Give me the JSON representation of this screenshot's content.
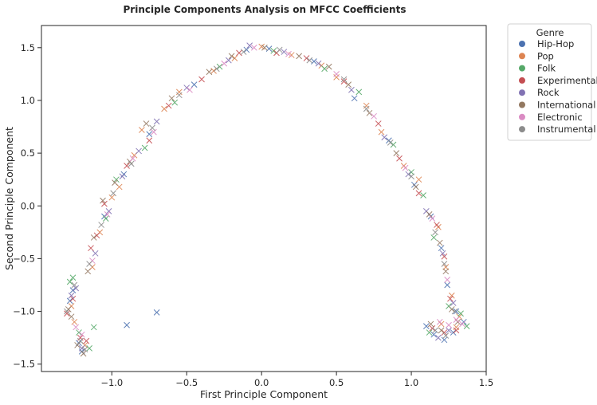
{
  "chart_data": {
    "type": "scatter",
    "title": "Principle Components Analysis on MFCC Coefficients",
    "xlabel": "First Principle Component",
    "ylabel": "Second Principle Component",
    "xlim": [
      -1.47,
      1.5
    ],
    "ylim": [
      -1.57,
      1.71
    ],
    "xticks": [
      -1.0,
      -0.5,
      0.0,
      0.5,
      1.0,
      1.5
    ],
    "xtick_labels": [
      "−1.0",
      "−0.5",
      "0.0",
      "0.5",
      "1.0",
      "1.5"
    ],
    "yticks": [
      -1.5,
      -1.0,
      -0.5,
      0.0,
      0.5,
      1.0,
      1.5
    ],
    "ytick_labels": [
      "−1.5",
      "−1.0",
      "−0.5",
      "0.0",
      "0.5",
      "1.0",
      "1.5"
    ],
    "grid": false,
    "marker": "x",
    "legend": {
      "title": "Genre",
      "placement": "outside-top-right"
    },
    "series": [
      {
        "name": "Hip-Hop",
        "color": "#4c72b0",
        "points": [
          [
            -1.26,
            -0.8
          ],
          [
            -1.28,
            -0.9
          ],
          [
            -1.22,
            -1.3
          ],
          [
            -1.2,
            -1.38
          ],
          [
            -0.9,
            -1.13
          ],
          [
            -0.7,
            -1.01
          ],
          [
            -1.05,
            -0.1
          ],
          [
            -0.92,
            0.3
          ],
          [
            -0.75,
            0.68
          ],
          [
            -0.45,
            1.15
          ],
          [
            -0.1,
            1.48
          ],
          [
            0.05,
            1.49
          ],
          [
            0.35,
            1.37
          ],
          [
            0.62,
            1.02
          ],
          [
            0.85,
            0.62
          ],
          [
            1.02,
            0.2
          ],
          [
            1.13,
            -0.1
          ],
          [
            1.2,
            -0.4
          ],
          [
            1.24,
            -0.75
          ],
          [
            1.3,
            -1.0
          ],
          [
            1.15,
            -1.22
          ],
          [
            1.22,
            -1.27
          ],
          [
            1.28,
            -1.2
          ],
          [
            1.1,
            -1.14
          ],
          [
            1.35,
            -1.1
          ]
        ]
      },
      {
        "name": "Pop",
        "color": "#dd8452",
        "points": [
          [
            -1.27,
            -0.95
          ],
          [
            -1.25,
            -1.1
          ],
          [
            -1.18,
            -1.32
          ],
          [
            -1.13,
            -0.58
          ],
          [
            -1.08,
            -0.25
          ],
          [
            -1.0,
            0.08
          ],
          [
            -0.95,
            0.18
          ],
          [
            -0.85,
            0.48
          ],
          [
            -0.8,
            0.72
          ],
          [
            -0.65,
            0.92
          ],
          [
            -0.55,
            1.08
          ],
          [
            -0.32,
            1.28
          ],
          [
            -0.18,
            1.4
          ],
          [
            0.0,
            1.51
          ],
          [
            0.2,
            1.43
          ],
          [
            0.4,
            1.33
          ],
          [
            0.5,
            1.22
          ],
          [
            0.7,
            0.95
          ],
          [
            0.8,
            0.7
          ],
          [
            0.95,
            0.38
          ],
          [
            1.05,
            0.25
          ],
          [
            1.18,
            -0.2
          ],
          [
            1.23,
            -0.58
          ],
          [
            1.27,
            -0.85
          ],
          [
            1.32,
            -1.05
          ],
          [
            1.3,
            -1.15
          ],
          [
            1.2,
            -1.12
          ]
        ]
      },
      {
        "name": "Folk",
        "color": "#55a868",
        "points": [
          [
            -1.28,
            -0.72
          ],
          [
            -1.26,
            -0.68
          ],
          [
            -1.22,
            -1.2
          ],
          [
            -1.12,
            -1.15
          ],
          [
            -1.15,
            -1.35
          ],
          [
            -1.04,
            -0.12
          ],
          [
            -0.97,
            0.25
          ],
          [
            -0.78,
            0.55
          ],
          [
            -0.58,
            0.98
          ],
          [
            -0.28,
            1.32
          ],
          [
            0.08,
            1.47
          ],
          [
            0.42,
            1.3
          ],
          [
            0.65,
            1.08
          ],
          [
            0.88,
            0.58
          ],
          [
            1.0,
            0.32
          ],
          [
            1.08,
            0.1
          ],
          [
            1.15,
            -0.3
          ],
          [
            1.25,
            -0.95
          ],
          [
            1.33,
            -1.02
          ],
          [
            1.37,
            -1.14
          ],
          [
            1.12,
            -1.2
          ]
        ]
      },
      {
        "name": "Experimental",
        "color": "#c44e52",
        "points": [
          [
            -1.3,
            -1.02
          ],
          [
            -1.26,
            -0.88
          ],
          [
            -1.21,
            -1.25
          ],
          [
            -1.17,
            -1.28
          ],
          [
            -1.14,
            -0.4
          ],
          [
            -1.1,
            -0.28
          ],
          [
            -1.05,
            0.02
          ],
          [
            -0.9,
            0.38
          ],
          [
            -0.75,
            0.62
          ],
          [
            -0.62,
            0.95
          ],
          [
            -0.4,
            1.2
          ],
          [
            -0.15,
            1.45
          ],
          [
            0.1,
            1.45
          ],
          [
            0.3,
            1.4
          ],
          [
            0.55,
            1.18
          ],
          [
            0.78,
            0.78
          ],
          [
            0.92,
            0.45
          ],
          [
            1.05,
            0.12
          ],
          [
            1.17,
            -0.18
          ],
          [
            1.22,
            -0.48
          ],
          [
            1.26,
            -0.88
          ],
          [
            1.3,
            -1.18
          ],
          [
            1.22,
            -1.2
          ],
          [
            1.14,
            -1.16
          ]
        ]
      },
      {
        "name": "Rock",
        "color": "#8172b3",
        "points": [
          [
            -1.27,
            -0.85
          ],
          [
            -1.24,
            -0.78
          ],
          [
            -1.2,
            -1.35
          ],
          [
            -1.11,
            -0.45
          ],
          [
            -1.02,
            -0.05
          ],
          [
            -0.93,
            0.28
          ],
          [
            -0.82,
            0.52
          ],
          [
            -0.7,
            0.8
          ],
          [
            -0.5,
            1.12
          ],
          [
            -0.22,
            1.38
          ],
          [
            -0.08,
            1.52
          ],
          [
            0.15,
            1.46
          ],
          [
            0.38,
            1.35
          ],
          [
            0.6,
            1.1
          ],
          [
            0.82,
            0.65
          ],
          [
            0.98,
            0.3
          ],
          [
            1.1,
            -0.05
          ],
          [
            1.21,
            -0.45
          ],
          [
            1.28,
            -0.92
          ],
          [
            1.25,
            -1.18
          ],
          [
            1.18,
            -1.25
          ]
        ]
      },
      {
        "name": "International",
        "color": "#937860",
        "points": [
          [
            -1.29,
            -0.98
          ],
          [
            -1.27,
            -1.05
          ],
          [
            -1.23,
            -1.32
          ],
          [
            -1.19,
            -1.4
          ],
          [
            -1.16,
            -0.62
          ],
          [
            -1.12,
            -0.3
          ],
          [
            -1.06,
            0.05
          ],
          [
            -0.98,
            0.22
          ],
          [
            -0.88,
            0.42
          ],
          [
            -0.77,
            0.78
          ],
          [
            -0.6,
            1.02
          ],
          [
            -0.35,
            1.27
          ],
          [
            -0.2,
            1.42
          ],
          [
            0.02,
            1.5
          ],
          [
            0.25,
            1.42
          ],
          [
            0.45,
            1.32
          ],
          [
            0.58,
            1.15
          ],
          [
            0.72,
            0.88
          ],
          [
            0.9,
            0.5
          ],
          [
            1.03,
            0.18
          ],
          [
            1.12,
            -0.08
          ],
          [
            1.19,
            -0.35
          ],
          [
            1.23,
            -0.62
          ],
          [
            1.27,
            -0.98
          ],
          [
            1.31,
            -1.1
          ],
          [
            1.2,
            -1.18
          ],
          [
            1.13,
            -1.12
          ]
        ]
      },
      {
        "name": "Electronic",
        "color": "#da8bc3",
        "points": [
          [
            -1.24,
            -1.15
          ],
          [
            -1.2,
            -1.22
          ],
          [
            -1.13,
            -0.52
          ],
          [
            -1.03,
            -0.08
          ],
          [
            -0.86,
            0.45
          ],
          [
            -0.72,
            0.7
          ],
          [
            -0.48,
            1.1
          ],
          [
            -0.25,
            1.35
          ],
          [
            -0.05,
            1.5
          ],
          [
            0.18,
            1.44
          ],
          [
            0.5,
            1.25
          ],
          [
            0.75,
            0.85
          ],
          [
            0.96,
            0.36
          ],
          [
            1.14,
            -0.12
          ],
          [
            1.24,
            -0.7
          ],
          [
            1.3,
            -1.08
          ],
          [
            1.25,
            -1.13
          ],
          [
            1.19,
            -1.1
          ],
          [
            1.34,
            -1.12
          ]
        ]
      },
      {
        "name": "Instrumental",
        "color": "#8c8c8c",
        "points": [
          [
            -1.3,
            -1.0
          ],
          [
            -1.25,
            -0.75
          ],
          [
            -1.21,
            -1.28
          ],
          [
            -1.18,
            -1.36
          ],
          [
            -1.15,
            -0.55
          ],
          [
            -1.07,
            -0.18
          ],
          [
            -0.99,
            0.12
          ],
          [
            -0.87,
            0.4
          ],
          [
            -0.73,
            0.74
          ],
          [
            -0.55,
            1.05
          ],
          [
            -0.3,
            1.3
          ],
          [
            -0.12,
            1.46
          ],
          [
            0.12,
            1.48
          ],
          [
            0.32,
            1.38
          ],
          [
            0.55,
            1.2
          ],
          [
            0.7,
            0.92
          ],
          [
            0.86,
            0.6
          ],
          [
            1.0,
            0.28
          ],
          [
            1.16,
            -0.25
          ],
          [
            1.22,
            -0.55
          ],
          [
            1.29,
            -1.0
          ],
          [
            1.23,
            -1.23
          ],
          [
            1.16,
            -1.18
          ]
        ]
      }
    ]
  }
}
